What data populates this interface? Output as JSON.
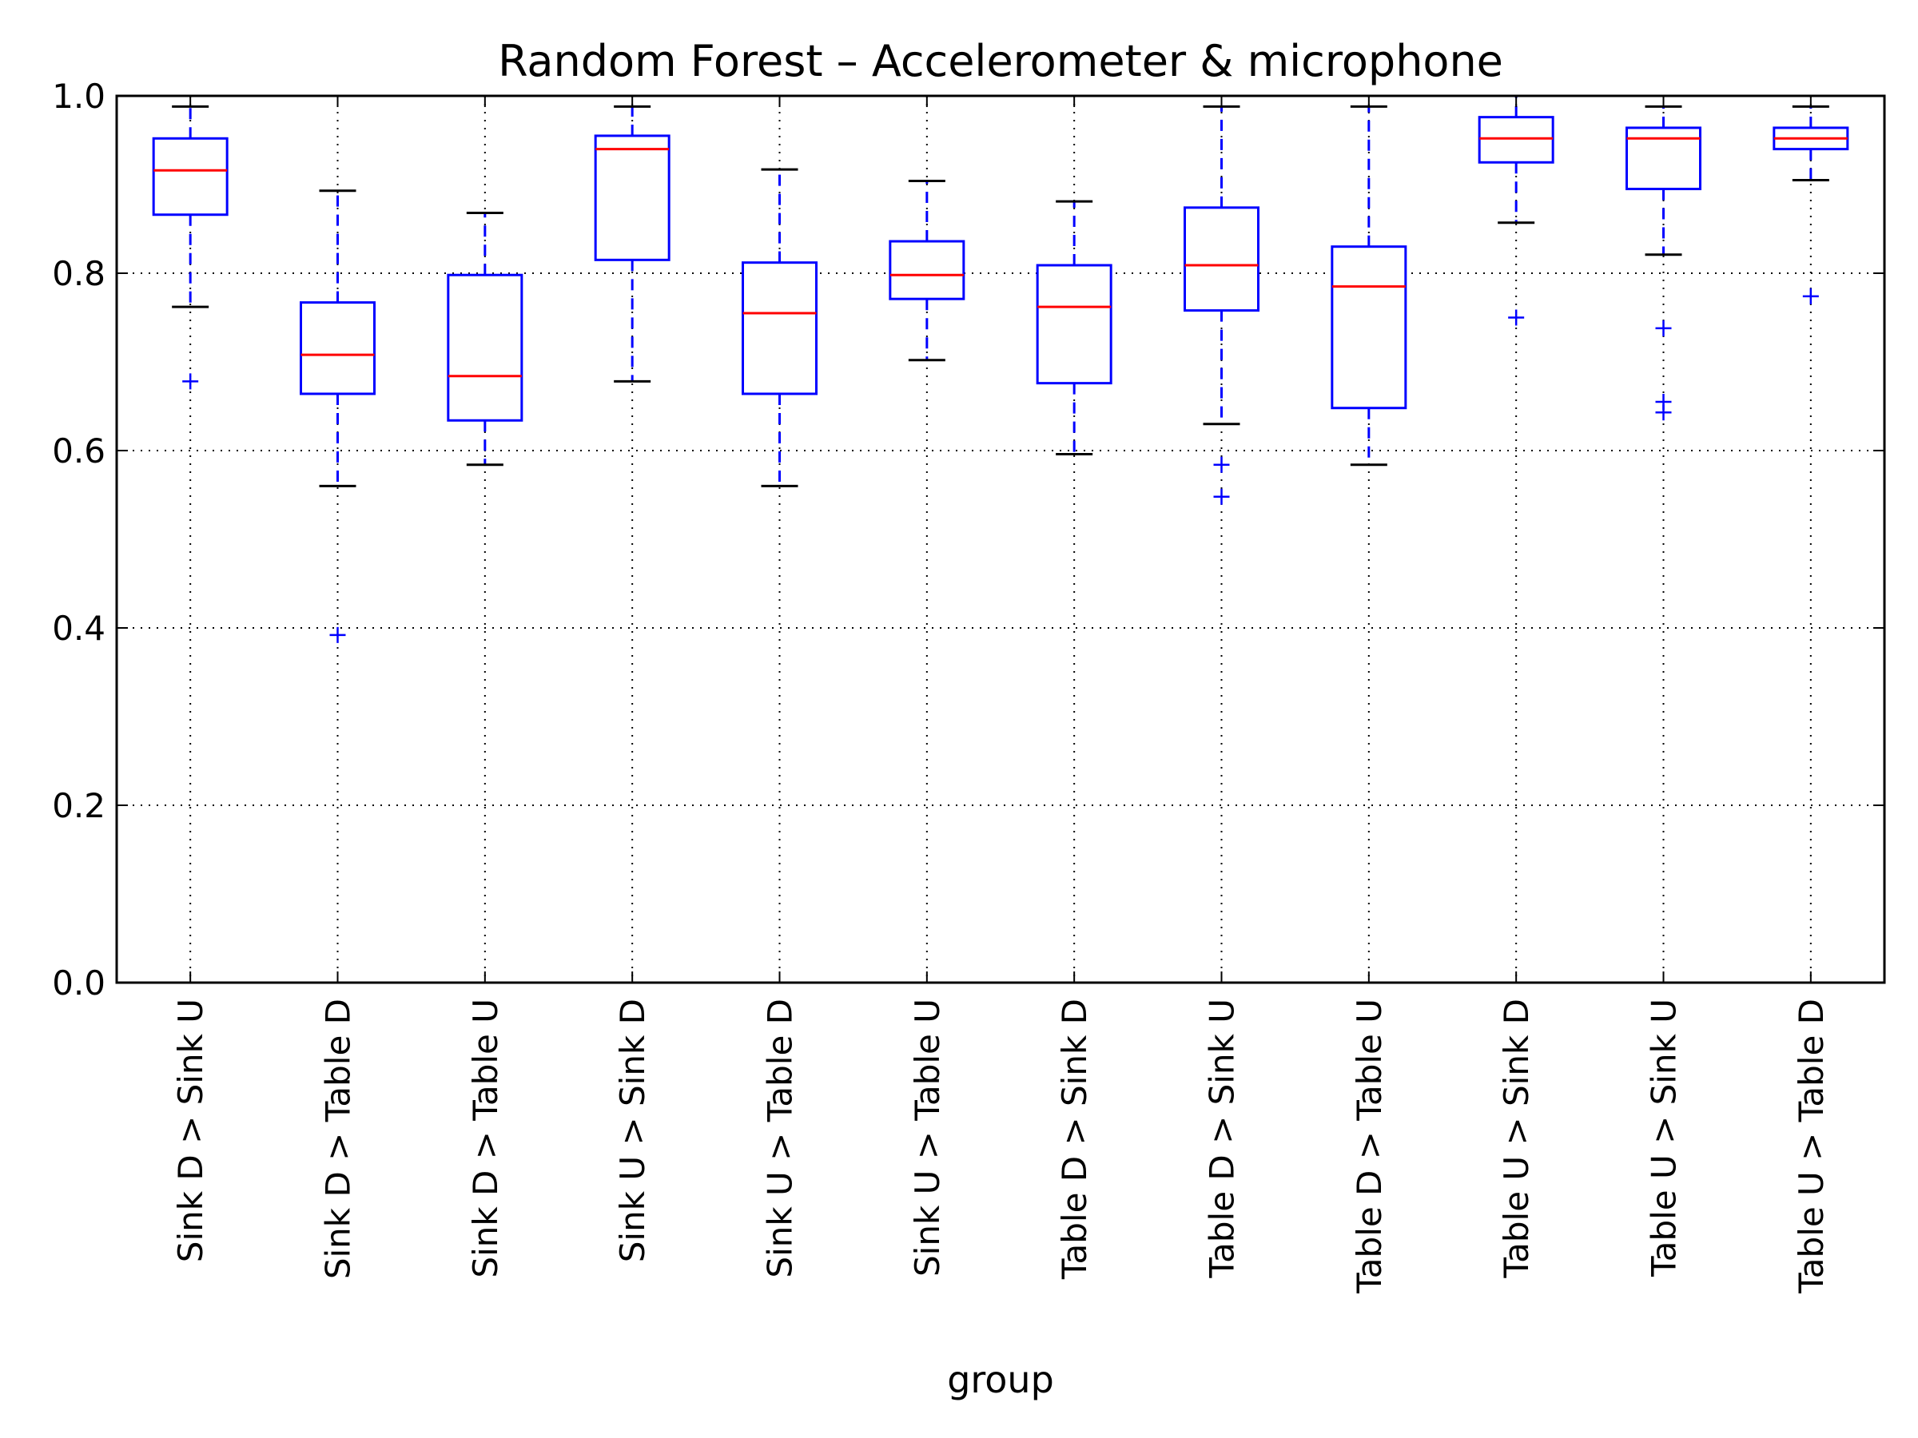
{
  "chart_data": {
    "type": "box",
    "title": "Random Forest – Accelerometer & microphone",
    "xlabel": "group",
    "ylabel": "",
    "ylim": [
      0.0,
      1.0
    ],
    "yticks": [
      "0.0",
      "0.2",
      "0.4",
      "0.6",
      "0.8",
      "1.0"
    ],
    "grid": true,
    "colors": {
      "box": "#0000ff",
      "median": "#ff0000",
      "caps": "#000000",
      "grid": "#000000"
    },
    "categories": [
      "Sink D > Sink U",
      "Sink D > Table D",
      "Sink D > Table U",
      "Sink U > Sink D",
      "Sink U > Table D",
      "Sink U > Table U",
      "Table D > Sink D",
      "Table D > Sink U",
      "Table D > Table U",
      "Table U > Sink D",
      "Table U > Sink U",
      "Table U > Table D"
    ],
    "boxes": [
      {
        "whisker_low": 0.762,
        "q1": 0.866,
        "median": 0.916,
        "q3": 0.952,
        "whisker_high": 0.988,
        "outliers": [
          0.678
        ]
      },
      {
        "whisker_low": 0.56,
        "q1": 0.664,
        "median": 0.708,
        "q3": 0.767,
        "whisker_high": 0.893,
        "outliers": [
          0.392
        ]
      },
      {
        "whisker_low": 0.584,
        "q1": 0.634,
        "median": 0.684,
        "q3": 0.798,
        "whisker_high": 0.868,
        "outliers": []
      },
      {
        "whisker_low": 0.678,
        "q1": 0.815,
        "median": 0.94,
        "q3": 0.955,
        "whisker_high": 0.988,
        "outliers": []
      },
      {
        "whisker_low": 0.56,
        "q1": 0.664,
        "median": 0.755,
        "q3": 0.812,
        "whisker_high": 0.917,
        "outliers": []
      },
      {
        "whisker_low": 0.702,
        "q1": 0.771,
        "median": 0.798,
        "q3": 0.836,
        "whisker_high": 0.904,
        "outliers": []
      },
      {
        "whisker_low": 0.596,
        "q1": 0.676,
        "median": 0.762,
        "q3": 0.809,
        "whisker_high": 0.881,
        "outliers": []
      },
      {
        "whisker_low": 0.63,
        "q1": 0.758,
        "median": 0.809,
        "q3": 0.874,
        "whisker_high": 0.988,
        "outliers": [
          0.584,
          0.548
        ]
      },
      {
        "whisker_low": 0.584,
        "q1": 0.648,
        "median": 0.785,
        "q3": 0.83,
        "whisker_high": 0.988,
        "outliers": []
      },
      {
        "whisker_low": 0.857,
        "q1": 0.925,
        "median": 0.952,
        "q3": 0.976,
        "whisker_high": 1.0,
        "outliers": [
          0.75
        ]
      },
      {
        "whisker_low": 0.821,
        "q1": 0.895,
        "median": 0.952,
        "q3": 0.964,
        "whisker_high": 0.988,
        "outliers": [
          0.738,
          0.655,
          0.643
        ]
      },
      {
        "whisker_low": 0.905,
        "q1": 0.94,
        "median": 0.952,
        "q3": 0.964,
        "whisker_high": 0.988,
        "outliers": [
          0.774
        ]
      }
    ]
  }
}
